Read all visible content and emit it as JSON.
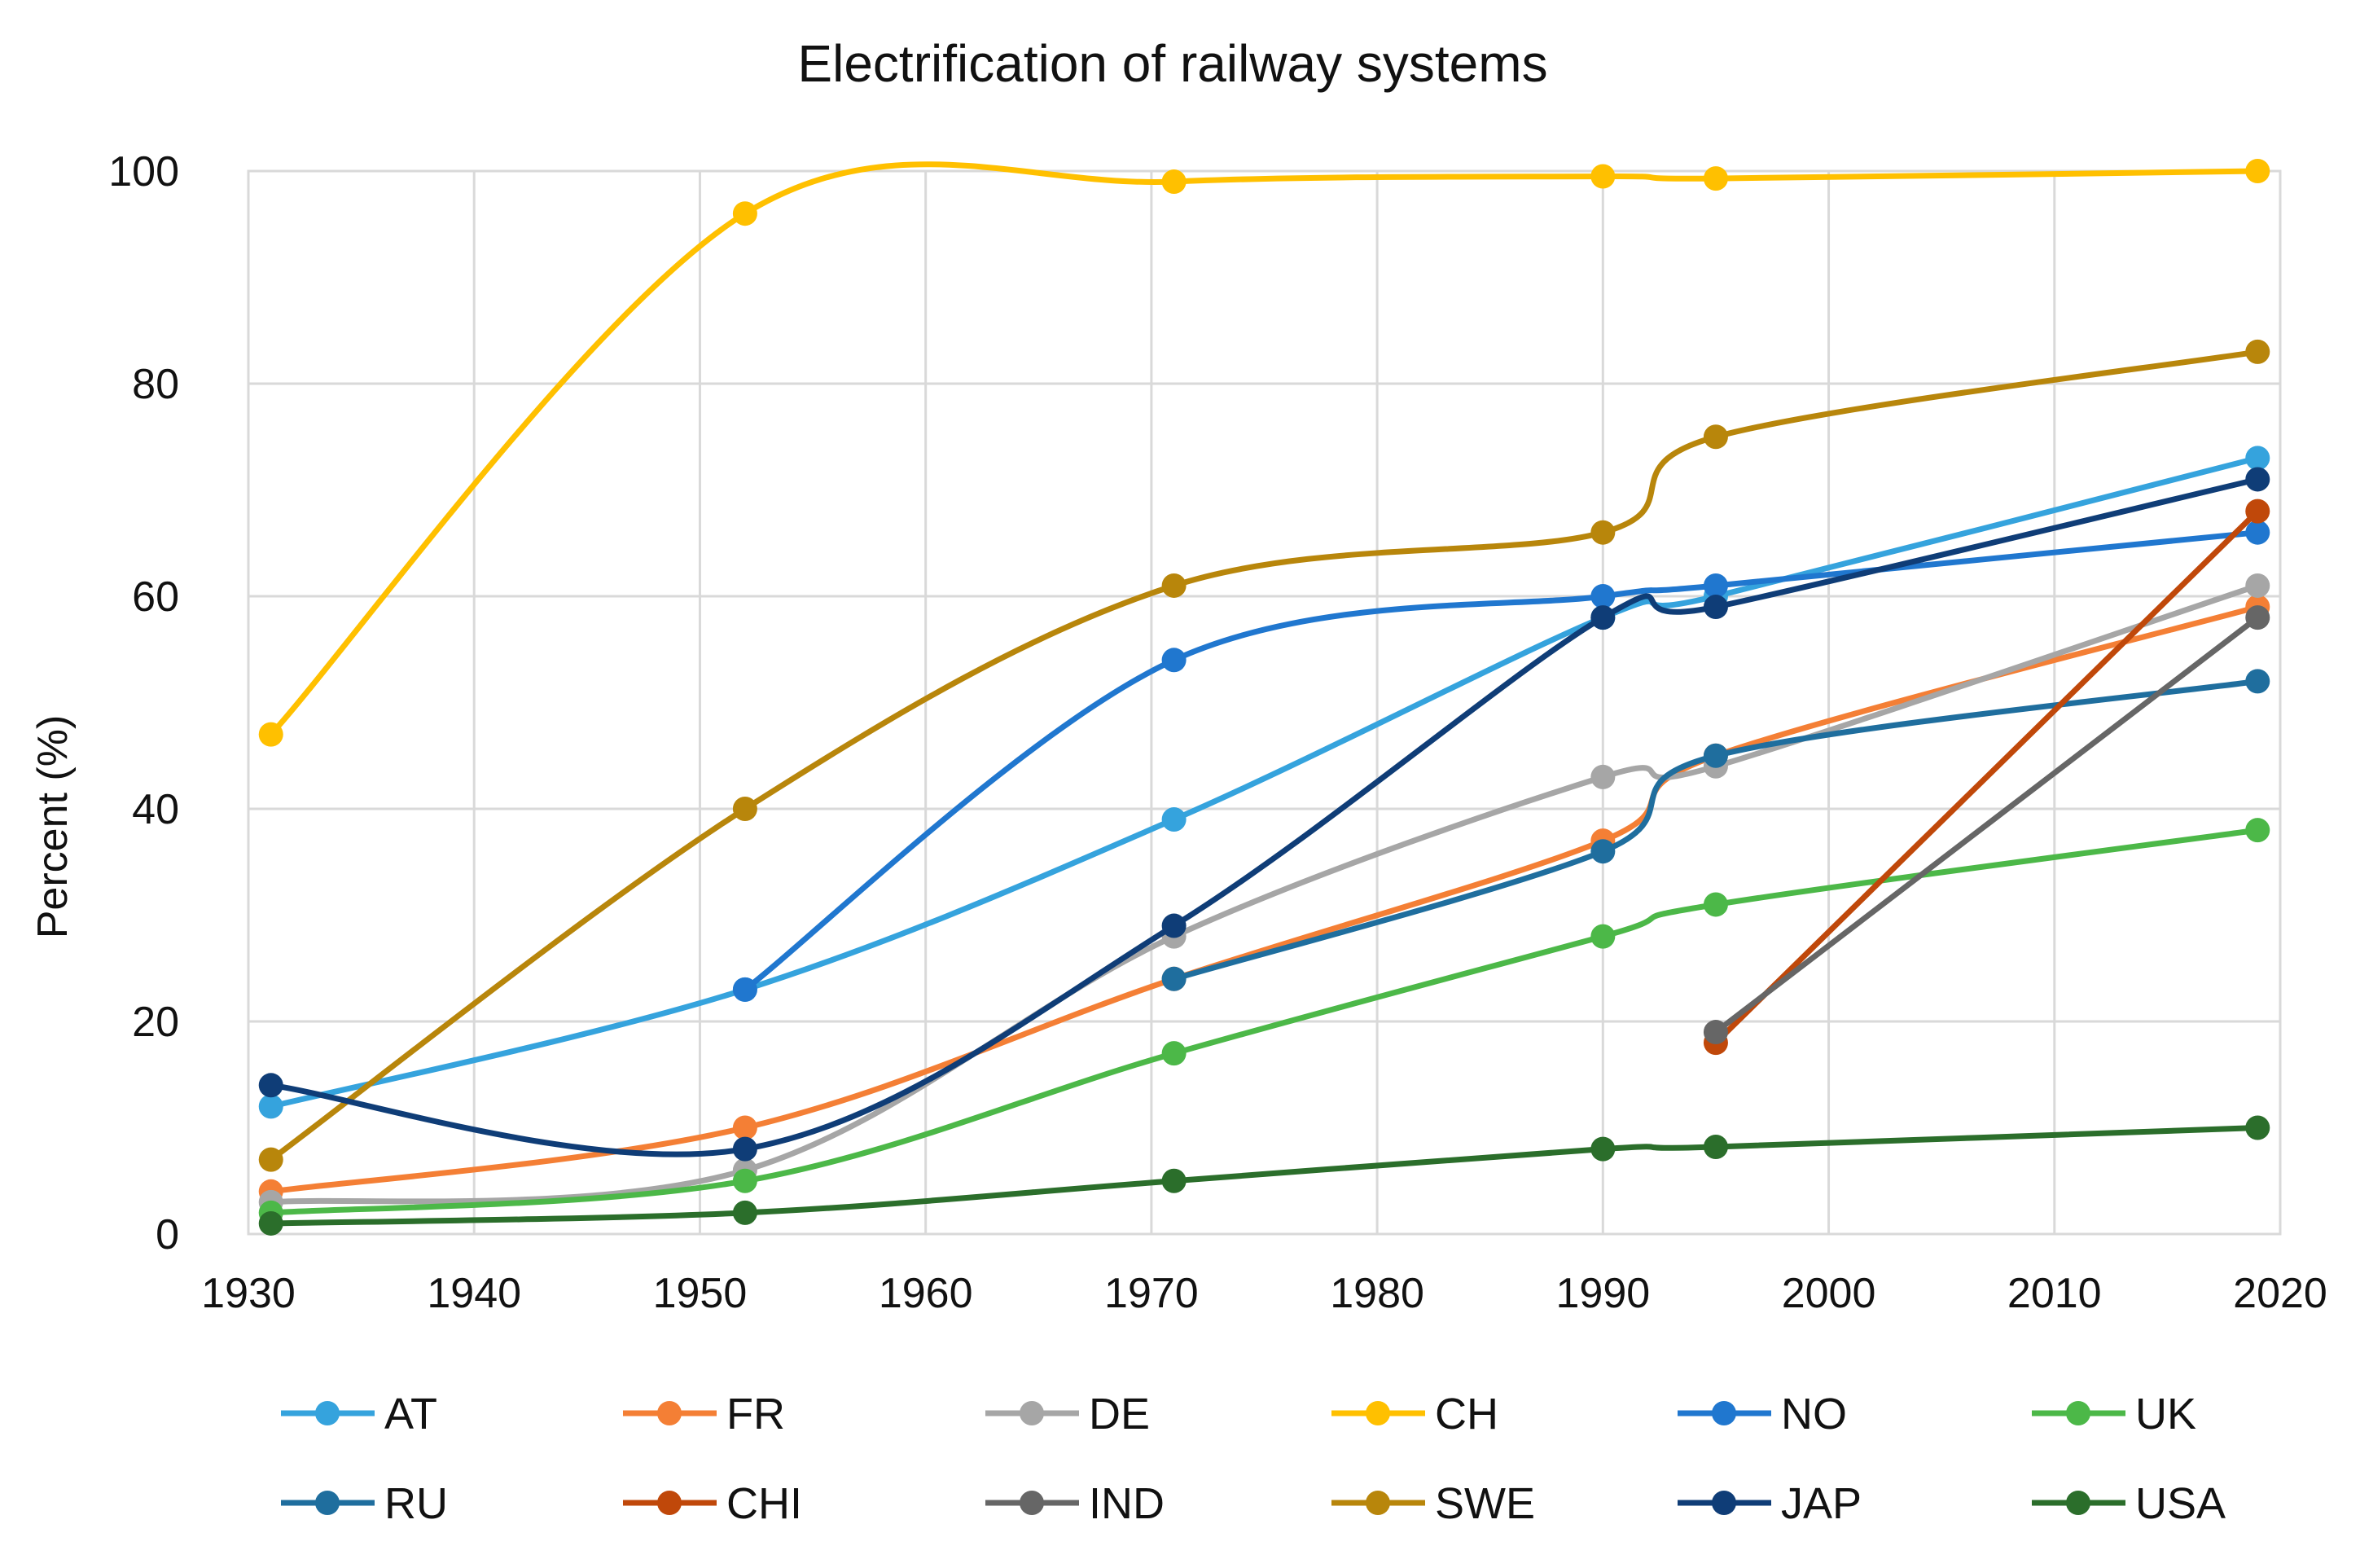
{
  "chart_data": {
    "type": "line",
    "title": "Electrification of railway systems",
    "xlabel": "",
    "ylabel": "Percent (%)",
    "xlim": [
      1930,
      2020
    ],
    "ylim": [
      0,
      100
    ],
    "x_ticks": [
      1930,
      1940,
      1950,
      1960,
      1970,
      1980,
      1990,
      2000,
      2010,
      2020
    ],
    "y_ticks": [
      0,
      20,
      40,
      60,
      80,
      100
    ],
    "grid": true,
    "legend_position": "bottom",
    "series": [
      {
        "name": "AT",
        "color": "#35A3DD",
        "x": [
          1931,
          1952,
          1971,
          1990,
          1995,
          2019
        ],
        "values": [
          12,
          23,
          39,
          58,
          60,
          73
        ]
      },
      {
        "name": "FR",
        "color": "#F47F35",
        "x": [
          1931,
          1952,
          1971,
          1990,
          1995,
          2019
        ],
        "values": [
          4,
          10,
          24,
          37,
          45,
          59
        ]
      },
      {
        "name": "DE",
        "color": "#A6A6A6",
        "x": [
          1931,
          1952,
          1971,
          1990,
          1995,
          2019
        ],
        "values": [
          3,
          6,
          28,
          43,
          44,
          61
        ]
      },
      {
        "name": "CH",
        "color": "#FFC000",
        "x": [
          1931,
          1952,
          1971,
          1990,
          1995,
          2019
        ],
        "values": [
          47,
          96,
          99,
          99.5,
          99.3,
          100
        ]
      },
      {
        "name": "NO",
        "color": "#2077CF",
        "x": [
          1952,
          1971,
          1990,
          1995,
          2019
        ],
        "values": [
          23,
          54,
          60,
          61,
          66
        ]
      },
      {
        "name": "UK",
        "color": "#4CB848",
        "x": [
          1931,
          1952,
          1971,
          1990,
          1995,
          2019
        ],
        "values": [
          2,
          5,
          17,
          28,
          31,
          38
        ]
      },
      {
        "name": "RU",
        "color": "#1F6E9E",
        "x": [
          1971,
          1990,
          1995,
          2019
        ],
        "values": [
          24,
          36,
          45,
          52
        ]
      },
      {
        "name": "CHI",
        "color": "#C0480A",
        "x": [
          1995,
          2019
        ],
        "values": [
          18,
          68
        ]
      },
      {
        "name": "IND",
        "color": "#666666",
        "x": [
          1995,
          2019
        ],
        "values": [
          19,
          58
        ]
      },
      {
        "name": "SWE",
        "color": "#B8860B",
        "x": [
          1931,
          1952,
          1971,
          1990,
          1995,
          2019
        ],
        "values": [
          7,
          40,
          61,
          66,
          75,
          83
        ]
      },
      {
        "name": "JAP",
        "color": "#0F3D77",
        "x": [
          1931,
          1952,
          1971,
          1990,
          1995,
          2019
        ],
        "values": [
          14,
          8,
          29,
          58,
          59,
          71
        ]
      },
      {
        "name": "USA",
        "color": "#2B6E2B",
        "x": [
          1931,
          1952,
          1971,
          1990,
          1995,
          2019
        ],
        "values": [
          1,
          2,
          5,
          8,
          8.2,
          10
        ]
      }
    ]
  }
}
